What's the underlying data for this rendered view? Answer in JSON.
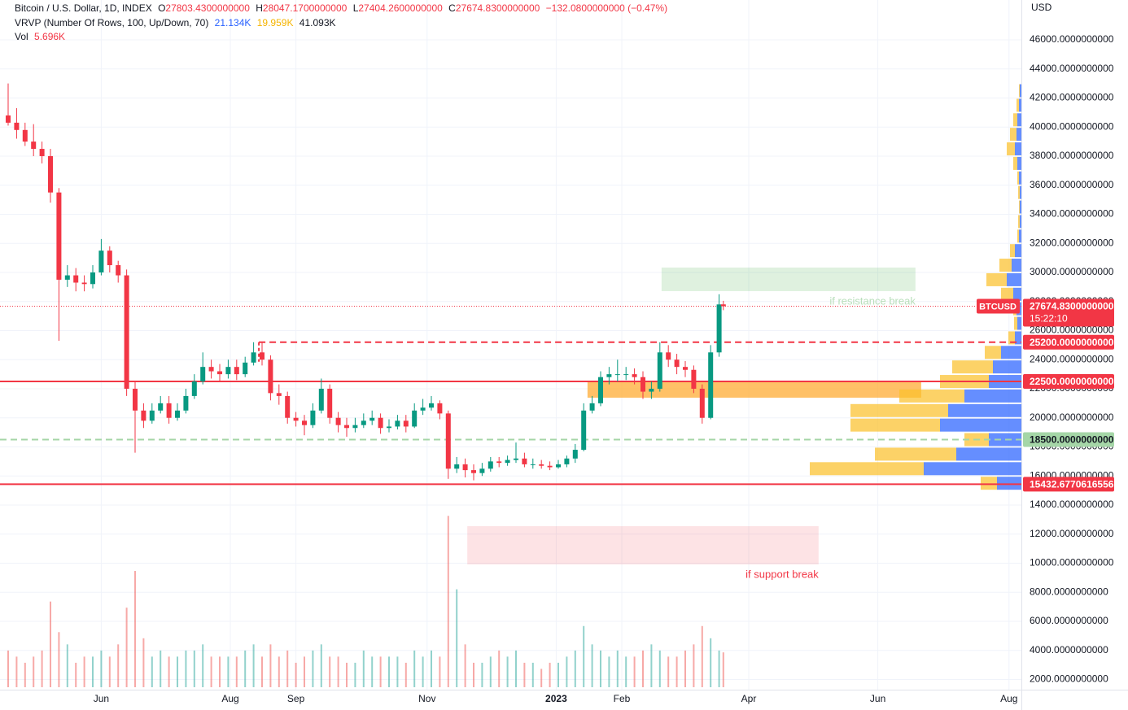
{
  "header": {
    "symbol": "Bitcoin / U.S. Dollar, 1D, INDEX",
    "ohlc": [
      {
        "key": "O",
        "value": "27803.4300000000"
      },
      {
        "key": "H",
        "value": "28047.1700000000"
      },
      {
        "key": "L",
        "value": "27404.2600000000"
      },
      {
        "key": "C",
        "value": "27674.8300000000"
      }
    ],
    "change": "−132.0800000000 (−0.47%)",
    "vrvp": "VRVP (Number Of Rows, 100, Up/Down, 70)",
    "vrvp_values": [
      "21.134K",
      "19.959K",
      "41.093K"
    ],
    "vol": "Vol",
    "vol_value": "5.696K"
  },
  "currency": "USD",
  "chart_data": {
    "type": "candlestick",
    "x": [
      0,
      4,
      8,
      12,
      16,
      20,
      24,
      28,
      32,
      36,
      40,
      44,
      48,
      52,
      56,
      60,
      64,
      68,
      72,
      76,
      80,
      84,
      88,
      92,
      96,
      100,
      104,
      108,
      112,
      116,
      120,
      124,
      128,
      132,
      136,
      140,
      144,
      148,
      152,
      156,
      160,
      164,
      168,
      172,
      176,
      180,
      184,
      188,
      192,
      196,
      200,
      204,
      208,
      212,
      216,
      220,
      224,
      228,
      232,
      236,
      240,
      244,
      248,
      252,
      256,
      260,
      264,
      268,
      272,
      276,
      280,
      284,
      288,
      292,
      296,
      300,
      304,
      308,
      312,
      316,
      320,
      324,
      328,
      332,
      336,
      338
    ],
    "open": [
      40800,
      40300,
      39800,
      39000,
      38500,
      38000,
      35500,
      29500,
      29800,
      29300,
      29200,
      30000,
      31500,
      30500,
      29800,
      22000,
      20500,
      19800,
      20500,
      21000,
      20000,
      20500,
      21500,
      22500,
      23500,
      23200,
      23000,
      23500,
      23000,
      23800,
      24500,
      24000,
      21700,
      21500,
      20000,
      19800,
      19500,
      20500,
      22000,
      20000,
      19500,
      19300,
      19500,
      19800,
      20000,
      19300,
      19400,
      19800,
      19400,
      20500,
      20700,
      21000,
      20300,
      16500,
      16800,
      16400,
      16200,
      16500,
      17000,
      16900,
      17100,
      17200,
      16800,
      16800,
      16700,
      16600,
      16800,
      17200,
      17800,
      20500,
      21000,
      22800,
      23000,
      23000,
      23000,
      22800,
      21800,
      22000,
      24500,
      24000,
      23500,
      23300,
      22000,
      20000,
      24500,
      27803.43
    ],
    "high": [
      43000,
      41300,
      40300,
      40200,
      39000,
      38500,
      35800,
      30500,
      30300,
      29800,
      30500,
      32300,
      31800,
      30800,
      30200,
      22500,
      21000,
      21000,
      21500,
      21500,
      21000,
      22000,
      23000,
      24500,
      24000,
      23700,
      24000,
      24000,
      24200,
      25200,
      25200,
      24300,
      22300,
      21800,
      20400,
      20200,
      21000,
      22700,
      22300,
      20400,
      20000,
      20000,
      20300,
      20500,
      20300,
      19900,
      20200,
      20200,
      21000,
      21300,
      21500,
      21200,
      20500,
      17300,
      17200,
      16800,
      16900,
      17300,
      17300,
      17400,
      18300,
      17600,
      17200,
      17100,
      17000,
      17100,
      17400,
      18200,
      21000,
      21500,
      23200,
      23500,
      24000,
      23500,
      23400,
      23200,
      22500,
      25200,
      25000,
      24400,
      23900,
      23600,
      22300,
      25000,
      28500,
      28047.17
    ],
    "low": [
      40100,
      39200,
      38700,
      38000,
      37500,
      34800,
      25300,
      29000,
      28700,
      28700,
      28900,
      29800,
      30000,
      29300,
      21500,
      17600,
      19300,
      19600,
      20300,
      19600,
      19800,
      20300,
      21300,
      22300,
      22700,
      22500,
      22700,
      22600,
      22800,
      23600,
      23600,
      21200,
      20900,
      19600,
      19400,
      18800,
      19300,
      20300,
      19600,
      19000,
      18700,
      19000,
      19300,
      19500,
      18900,
      19000,
      19200,
      19000,
      19300,
      20200,
      20500,
      19900,
      15800,
      16200,
      15900,
      15700,
      16000,
      16300,
      16600,
      16700,
      16900,
      16600,
      16500,
      16500,
      16400,
      16500,
      16600,
      16900,
      17700,
      20300,
      20800,
      22300,
      22500,
      22600,
      22300,
      21300,
      21300,
      21800,
      23500,
      23000,
      22800,
      21700,
      19600,
      19900,
      24200,
      27404.26
    ],
    "close": [
      40300,
      39800,
      39000,
      38500,
      38000,
      35500,
      29500,
      29800,
      29300,
      29200,
      30000,
      31500,
      30500,
      29800,
      22000,
      20500,
      19800,
      20500,
      21000,
      20000,
      20500,
      21500,
      22500,
      23500,
      23200,
      23000,
      23500,
      23000,
      23800,
      24500,
      24000,
      21700,
      21500,
      20000,
      19800,
      19500,
      20500,
      22000,
      20000,
      19500,
      19300,
      19500,
      19800,
      20000,
      19300,
      19400,
      19800,
      19400,
      20500,
      20700,
      21000,
      20300,
      16500,
      16800,
      16400,
      16200,
      16500,
      17000,
      16900,
      17100,
      17200,
      16800,
      16800,
      16700,
      16600,
      16800,
      17200,
      17800,
      20500,
      21000,
      22800,
      23000,
      23000,
      23000,
      22800,
      21800,
      22000,
      24500,
      24000,
      23500,
      23300,
      22000,
      20000,
      24500,
      27800,
      27674.83
    ],
    "up_color": "#089981",
    "down_color": "#f23645",
    "xlim": [
      -3.85,
      478.85
    ],
    "xticks": [
      {
        "value": 44,
        "label": "Jun"
      },
      {
        "value": 105,
        "label": "Aug"
      },
      {
        "value": 136,
        "label": "Sep"
      },
      {
        "value": 198,
        "label": "Nov"
      },
      {
        "value": 259,
        "label": "2023"
      },
      {
        "value": 290,
        "label": "Feb"
      },
      {
        "value": 350,
        "label": "Apr"
      },
      {
        "value": 411,
        "label": "Jun"
      },
      {
        "value": 473,
        "label": "Aug"
      }
    ],
    "ylim": [
      1300,
      48740
    ],
    "yticks": [
      {
        "value": 2000,
        "label": "2000.0000000000"
      },
      {
        "value": 4000,
        "label": "4000.0000000000"
      },
      {
        "value": 6000,
        "label": "6000.0000000000"
      },
      {
        "value": 8000,
        "label": "8000.0000000000"
      },
      {
        "value": 10000,
        "label": "10000.0000000000"
      },
      {
        "value": 12000,
        "label": "12000.0000000000"
      },
      {
        "value": 14000,
        "label": "14000.0000000000"
      },
      {
        "value": 16000,
        "label": "16000.0000000000"
      },
      {
        "value": 18000,
        "label": "18000.0000000000"
      },
      {
        "value": 20000,
        "label": "20000.0000000000"
      },
      {
        "value": 22000,
        "label": "22000.0000000000"
      },
      {
        "value": 24000,
        "label": "24000.0000000000"
      },
      {
        "value": 26000,
        "label": "26000.0000000000"
      },
      {
        "value": 28000,
        "label": "28000.0000000000"
      },
      {
        "value": 30000,
        "label": "30000.0000000000"
      },
      {
        "value": 32000,
        "label": "32000.0000000000"
      },
      {
        "value": 34000,
        "label": "34000.0000000000"
      },
      {
        "value": 36000,
        "label": "36000.0000000000"
      },
      {
        "value": 38000,
        "label": "38000.0000000000"
      },
      {
        "value": 40000,
        "label": "40000.0000000000"
      },
      {
        "value": 42000,
        "label": "42000.0000000000"
      },
      {
        "value": 44000,
        "label": "44000.0000000000"
      },
      {
        "value": 46000,
        "label": "46000.0000000000"
      }
    ],
    "grid": true,
    "volume": {
      "values": [
        6,
        5,
        4,
        5,
        6,
        14,
        9,
        7,
        4,
        5,
        5,
        6,
        5,
        7,
        13,
        19,
        8,
        5,
        6,
        5,
        5,
        6,
        6,
        7,
        5,
        5,
        5,
        5,
        6,
        7,
        5,
        7,
        5,
        6,
        4,
        5,
        6,
        7,
        5,
        5,
        4,
        4,
        6,
        5,
        5,
        5,
        5,
        4,
        6,
        5,
        6,
        5,
        28,
        16,
        7,
        4,
        4,
        5,
        6,
        5,
        6,
        4,
        4,
        3,
        4,
        4,
        5,
        6,
        10,
        7,
        6,
        5,
        6,
        5,
        5,
        6,
        7,
        6,
        5,
        5,
        6,
        7,
        10,
        8,
        6,
        5.696
      ],
      "y2lim": [
        0,
        40
      ],
      "up_color": "rgba(38,166,154,0.5)",
      "down_color": "rgba(239,83,80,0.5)"
    },
    "profile": {
      "prices": [
        15500,
        16500,
        17500,
        18500,
        19500,
        20500,
        21500,
        22500,
        23500,
        24500,
        25500,
        26500,
        27500,
        28500,
        29500,
        30500,
        31500,
        32500,
        33500,
        34500,
        35500,
        36500,
        37500,
        38500,
        39500,
        40500,
        41500,
        42500
      ],
      "up": [
        30,
        120,
        80,
        40,
        100,
        90,
        70,
        40,
        35,
        25,
        8,
        5,
        6,
        10,
        18,
        12,
        8,
        3,
        2,
        2,
        2,
        3,
        5,
        8,
        6,
        5,
        3,
        2
      ],
      "down": [
        20,
        140,
        100,
        30,
        110,
        120,
        80,
        60,
        50,
        20,
        8,
        4,
        4,
        15,
        25,
        15,
        6,
        2,
        2,
        1,
        2,
        2,
        5,
        10,
        8,
        5,
        3,
        1
      ],
      "xlim": [
        0,
        300
      ],
      "up_color": "rgba(41,98,255,0.72)",
      "down_color": "rgba(251,192,45,0.72)"
    },
    "levels": [
      {
        "value": 25200,
        "label": "25200.0000000000",
        "style": "dashed",
        "color": "#f23645",
        "start": 118.5
      },
      {
        "value": 22500,
        "label": "22500.0000000000",
        "style": "solid",
        "color": "#f23645"
      },
      {
        "value": 18500,
        "label": "18500.0000000000",
        "style": "dashed",
        "color": "#a5d6a7"
      },
      {
        "value": 15432.6770616556,
        "label": "15432.6770616556",
        "style": "solid",
        "color": "#f23645"
      }
    ],
    "zones": [
      {
        "top": 30336,
        "bottom": 28713,
        "start": 308.8,
        "end": 428.8,
        "color": "rgba(76,175,80,0.18)",
        "text": "if resistance break",
        "text_color": "#b9dfbb"
      },
      {
        "top": 22503,
        "bottom": 21385,
        "start": 273.8,
        "end": 431.5,
        "color": "rgba(255,167,38,0.7)"
      },
      {
        "top": 12545,
        "bottom": 9916,
        "start": 217,
        "end": 383,
        "color": "rgba(242,54,69,0.14)",
        "text": "if support break",
        "text_color": "#f23645"
      }
    ],
    "last_price": {
      "symbol": "BTCUSD",
      "value": 27674.83,
      "label": "27674.8300000000",
      "countdown": "15:22:10",
      "color": "#f23645"
    }
  }
}
